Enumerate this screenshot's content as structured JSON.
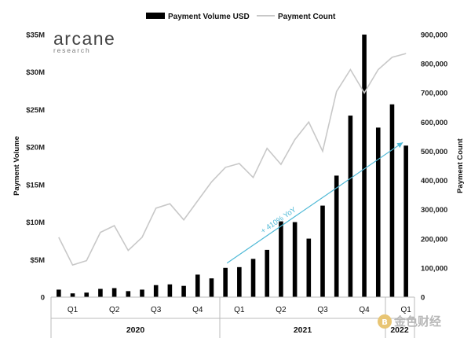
{
  "logo": {
    "name": "arcane",
    "sub": "research"
  },
  "watermark": {
    "text": "金色财经"
  },
  "chart_data": {
    "type": "bar+line",
    "legend": [
      {
        "label": "Payment Volume USD",
        "color": "#000000"
      },
      {
        "label": "Payment Count",
        "color": "#c8c8c8"
      }
    ],
    "ylabel_left": "Payment Volume",
    "ylabel_right": "Payment Count",
    "y_left": {
      "min": 0,
      "max": 35,
      "ticks": [
        "0",
        "$5M",
        "$10M",
        "$15M",
        "$20M",
        "$25M",
        "$30M",
        "$35M"
      ]
    },
    "y_right": {
      "min": 0,
      "max": 900000,
      "ticks": [
        "0",
        "100,000",
        "200,000",
        "300,000",
        "400,000",
        "500,000",
        "600,000",
        "700,000",
        "800,000",
        "900,000"
      ]
    },
    "quarters": [
      "Q1",
      "Q2",
      "Q3",
      "Q4",
      "Q1",
      "Q2",
      "Q3",
      "Q4",
      "Q1"
    ],
    "years": [
      "2020",
      "2021",
      "2022"
    ],
    "series": [
      {
        "name": "Payment Volume USD",
        "unit": "USD millions",
        "values": [
          1.0,
          0.5,
          0.6,
          1.1,
          1.2,
          0.8,
          1.0,
          1.6,
          1.7,
          1.5,
          3.0,
          2.5,
          3.9,
          4.0,
          5.1,
          6.3,
          10.1,
          10.0,
          7.8,
          12.2,
          16.2,
          24.2,
          35.0,
          22.6,
          25.7,
          20.2
        ]
      },
      {
        "name": "Payment Count",
        "values": [
          205000,
          110000,
          125000,
          222000,
          245000,
          160000,
          205000,
          305000,
          320000,
          265000,
          330000,
          395000,
          445000,
          458000,
          410000,
          510000,
          455000,
          540000,
          600000,
          500000,
          705000,
          780000,
          700000,
          780000,
          822000,
          835000
        ]
      }
    ],
    "annotation": {
      "text": "+ 410% YoY",
      "from_index": 12,
      "to_index": 25,
      "color": "#4fb9d6"
    }
  }
}
